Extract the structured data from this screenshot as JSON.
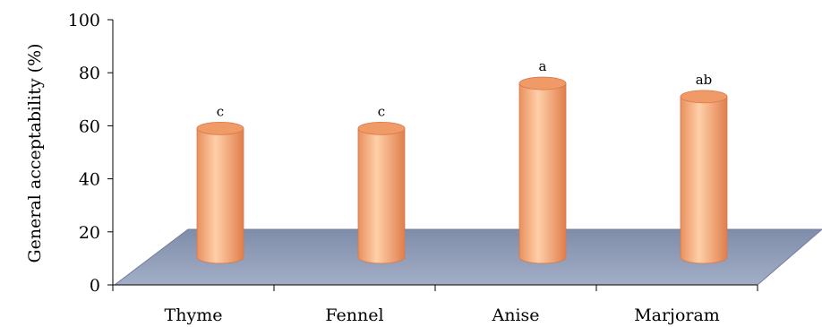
{
  "chart_data": {
    "type": "bar",
    "style": "3d-cylinder",
    "title": "",
    "xlabel": "",
    "ylabel": "General acceptability (%)",
    "ylim": [
      0,
      100
    ],
    "yticks": [
      0,
      20,
      40,
      60,
      80,
      100
    ],
    "categories": [
      "Thyme",
      "Fennel",
      "Anise",
      "Marjoram"
    ],
    "values": [
      59,
      59,
      76,
      71
    ],
    "significance_labels": [
      "c",
      "c",
      "a",
      "ab"
    ],
    "grid": false,
    "legend": "none",
    "colors": {
      "bar": "#F6A77A",
      "bar_highlight": "#FFD2B0",
      "bar_shadow": "#D9784A",
      "floor": "#8E9CB8",
      "floor_edge": "#6F7E9C"
    }
  }
}
